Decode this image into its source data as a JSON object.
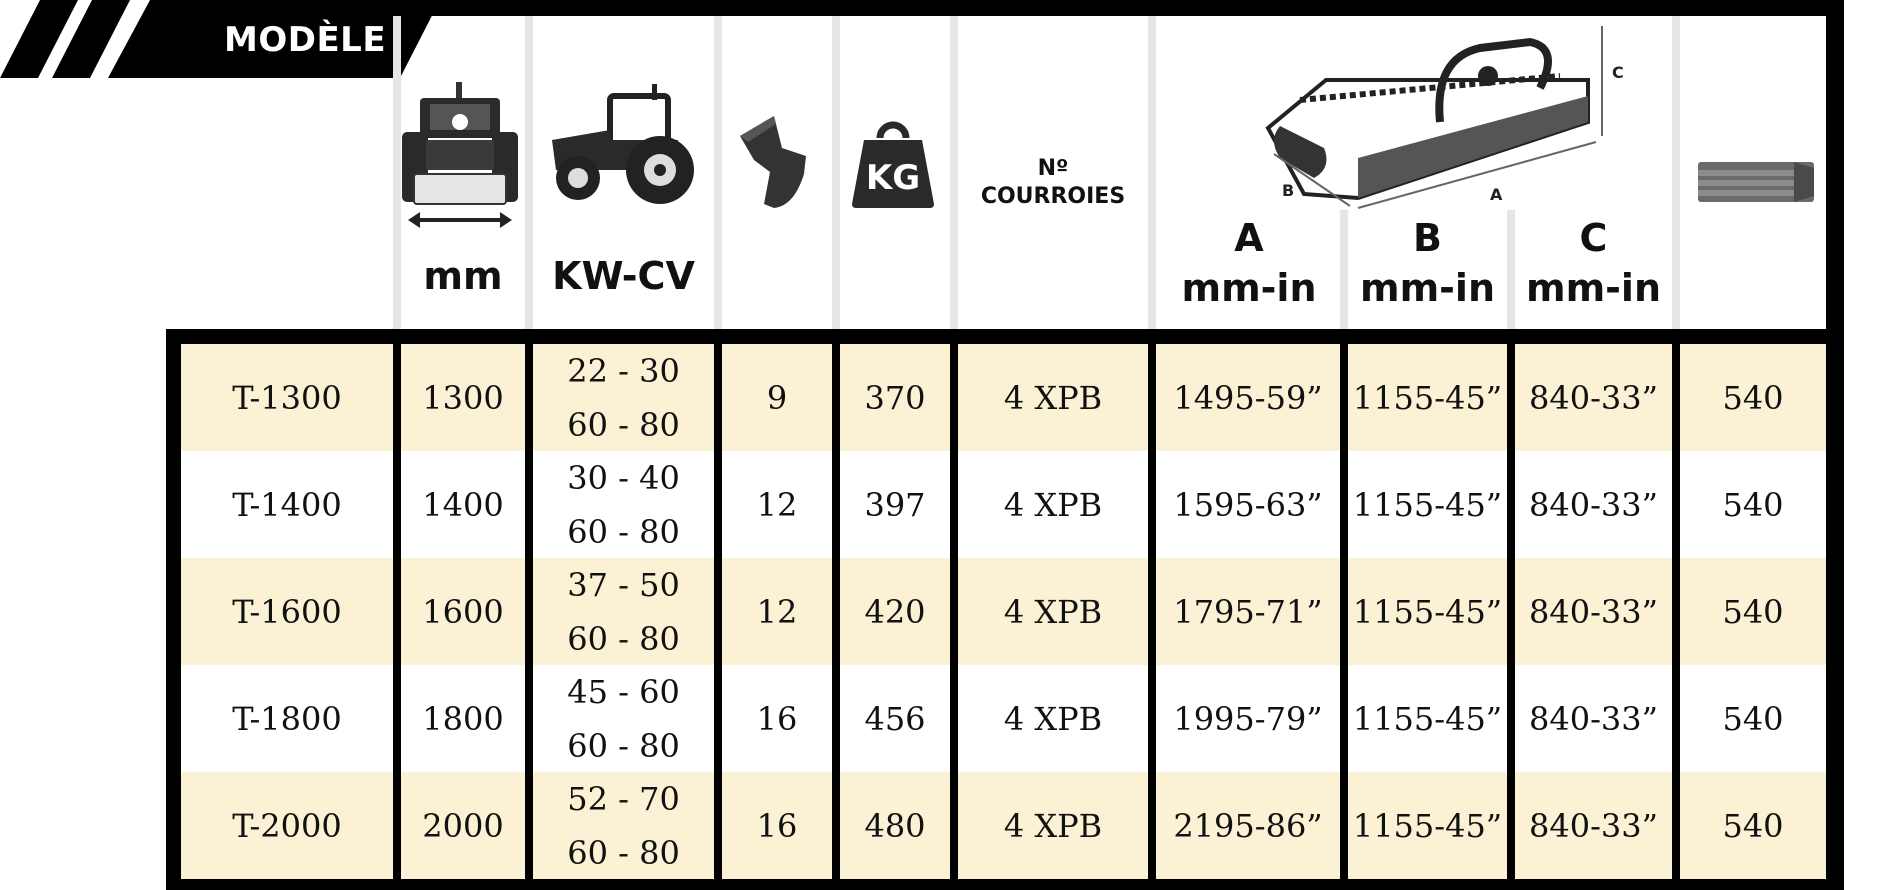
{
  "header": {
    "model_label": "MODÈLE",
    "width_unit": "mm",
    "power_unit": "KW-CV",
    "weight_icon_text": "KG",
    "belts_label_line1": "Nº",
    "belts_label_line2": "COURROIES",
    "dim_a_letter": "A",
    "dim_a_unit": "mm-in",
    "dim_b_letter": "B",
    "dim_b_unit": "mm-in",
    "dim_c_letter": "C",
    "dim_c_unit": "mm-in",
    "diagram_label_a": "A",
    "diagram_label_b": "B",
    "diagram_label_c": "C"
  },
  "icons": {
    "width": "tractor-front-width-icon",
    "power": "tractor-icon",
    "blades": "flail-blade-icon",
    "weight": "weight-icon",
    "dimensions": "mulcher-diagram-icon",
    "pto": "pto-shaft-icon"
  },
  "colors": {
    "row_odd": "#fbf1d4",
    "row_even": "#ffffff",
    "frame": "#000000"
  },
  "rows": [
    {
      "model": "T-1300",
      "width": "1300",
      "power1": "22 - 30",
      "power2": "60 - 80",
      "blades": "9",
      "weight": "370",
      "belts": "4 XPB",
      "a": "1495-59”",
      "b": "1155-45”",
      "c": "840-33”",
      "pto": "540"
    },
    {
      "model": "T-1400",
      "width": "1400",
      "power1": "30 - 40",
      "power2": "60 - 80",
      "blades": "12",
      "weight": "397",
      "belts": "4 XPB",
      "a": "1595-63”",
      "b": "1155-45”",
      "c": "840-33”",
      "pto": "540"
    },
    {
      "model": "T-1600",
      "width": "1600",
      "power1": "37 - 50",
      "power2": "60 - 80",
      "blades": "12",
      "weight": "420",
      "belts": "4 XPB",
      "a": "1795-71”",
      "b": "1155-45”",
      "c": "840-33”",
      "pto": "540"
    },
    {
      "model": "T-1800",
      "width": "1800",
      "power1": "45 - 60",
      "power2": "60 - 80",
      "blades": "16",
      "weight": "456",
      "belts": "4 XPB",
      "a": "1995-79”",
      "b": "1155-45”",
      "c": "840-33”",
      "pto": "540"
    },
    {
      "model": "T-2000",
      "width": "2000",
      "power1": "52 - 70",
      "power2": "60 - 80",
      "blades": "16",
      "weight": "480",
      "belts": "4 XPB",
      "a": "2195-86”",
      "b": "1155-45”",
      "c": "840-33”",
      "pto": "540"
    }
  ]
}
